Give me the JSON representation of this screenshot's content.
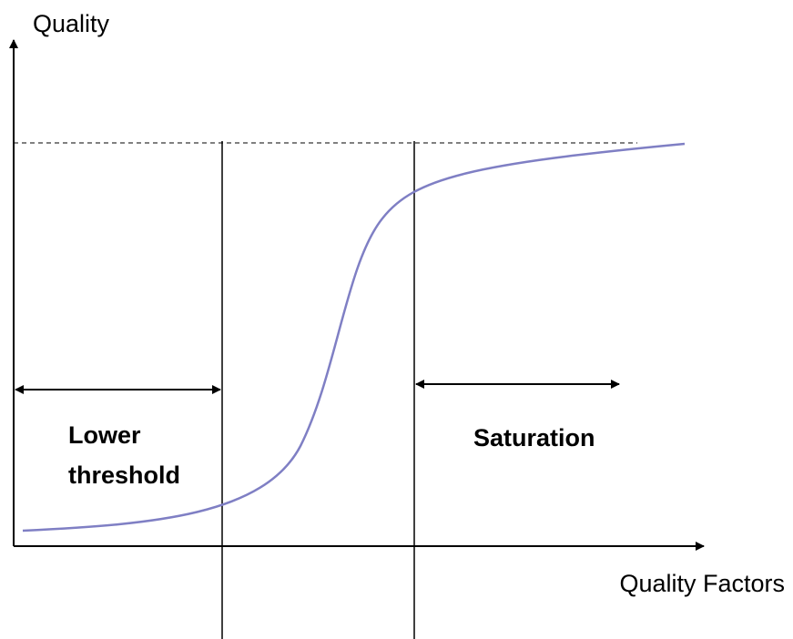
{
  "axes": {
    "y_label": "Quality",
    "x_label": "Quality Factors"
  },
  "regions": {
    "lower": [
      "Lower",
      "threshold"
    ],
    "upper": "Saturation"
  }
}
